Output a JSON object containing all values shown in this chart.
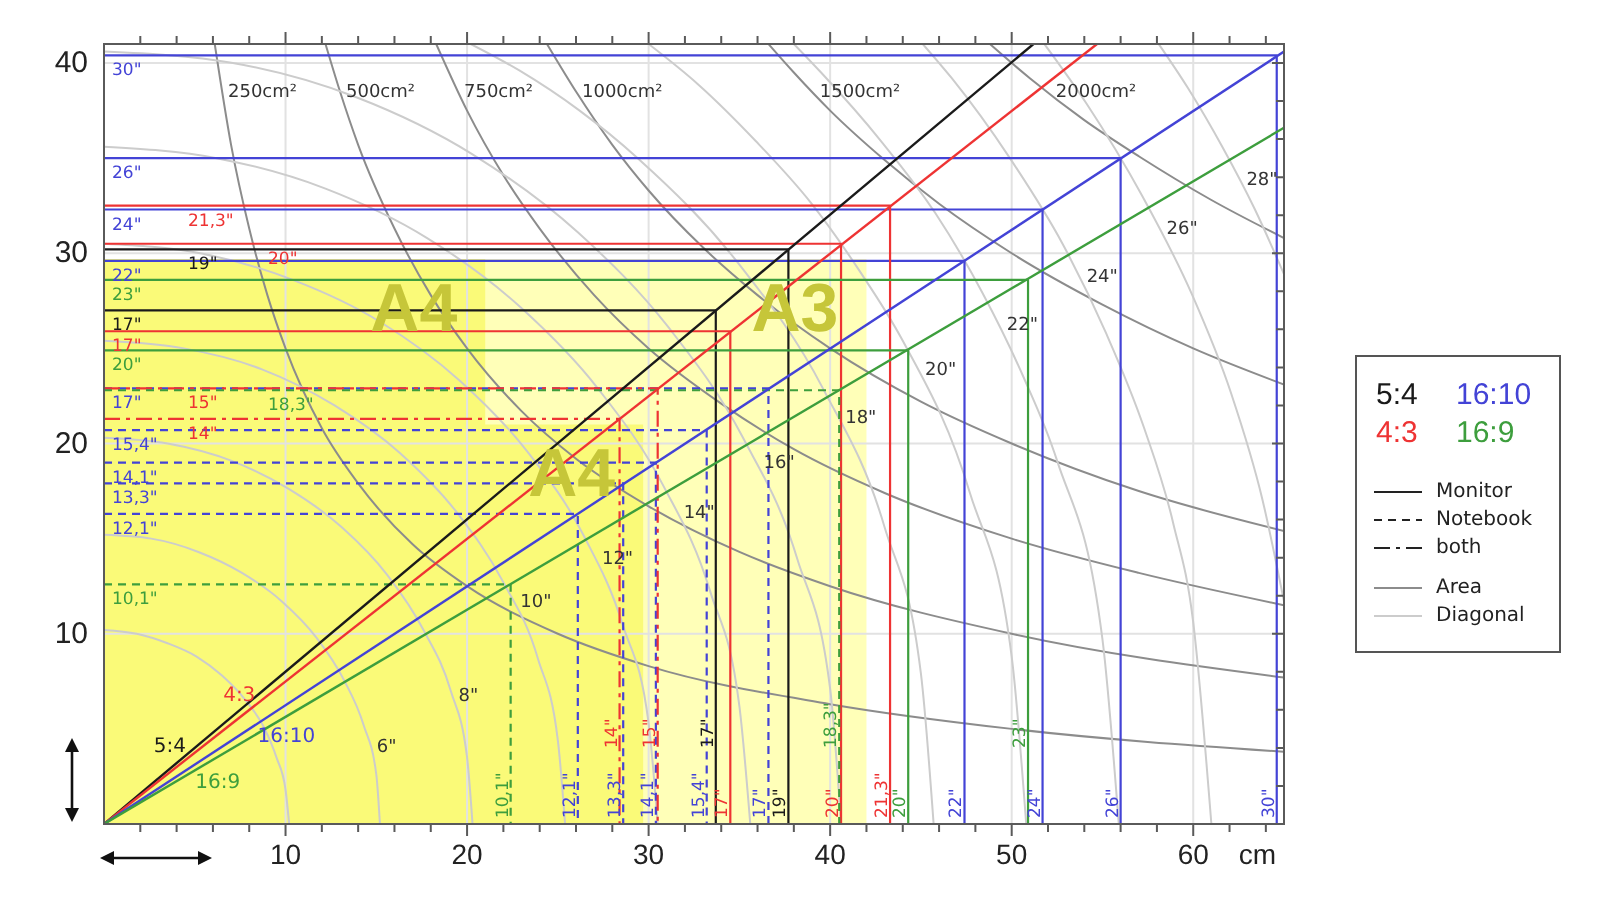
{
  "chart_data": {
    "type": "line",
    "xlabel": "cm",
    "xlim": [
      0,
      65
    ],
    "ylim": [
      0,
      41
    ],
    "xticks": [
      {
        "value": 2,
        "label": null
      },
      {
        "value": 4,
        "label": null
      },
      {
        "value": 6,
        "label": null
      },
      {
        "value": 8,
        "label": null
      },
      10,
      {
        "value": 12,
        "label": null
      },
      {
        "value": 14,
        "label": null
      },
      {
        "value": 16,
        "label": null
      },
      {
        "value": 18,
        "label": null
      },
      20,
      {
        "value": 22,
        "label": null
      },
      {
        "value": 24,
        "label": null
      },
      {
        "value": 26,
        "label": null
      },
      {
        "value": 28,
        "label": null
      },
      30,
      {
        "value": 32,
        "label": null
      },
      {
        "value": 34,
        "label": null
      },
      {
        "value": 36,
        "label": null
      },
      {
        "value": 38,
        "label": null
      },
      40,
      {
        "value": 42,
        "label": null
      },
      {
        "value": 44,
        "label": null
      },
      {
        "value": 46,
        "label": null
      },
      {
        "value": 48,
        "label": null
      },
      50,
      {
        "value": 52,
        "label": null
      },
      {
        "value": 54,
        "label": null
      },
      {
        "value": 56,
        "label": null
      },
      {
        "value": 58,
        "label": null
      },
      60,
      {
        "value": 62,
        "label": null
      },
      {
        "value": 64,
        "label": null
      }
    ],
    "yticks": [
      {
        "value": 2,
        "label": null
      },
      {
        "value": 4,
        "label": null
      },
      {
        "value": 6,
        "label": null
      },
      {
        "value": 8,
        "label": null
      },
      10,
      {
        "value": 12,
        "label": null
      },
      {
        "value": 14,
        "label": null
      },
      {
        "value": 16,
        "label": null
      },
      {
        "value": 18,
        "label": null
      },
      20,
      {
        "value": 22,
        "label": null
      },
      {
        "value": 24,
        "label": null
      },
      {
        "value": 26,
        "label": null
      },
      {
        "value": 28,
        "label": null
      },
      30,
      {
        "value": 32,
        "label": null
      },
      {
        "value": 34,
        "label": null
      },
      {
        "value": 36,
        "label": null
      },
      {
        "value": 38,
        "label": null
      },
      40
    ],
    "grid": true,
    "legend": "right",
    "series": [
      {
        "name": "A3",
        "type": "area",
        "color": "#ffffb8",
        "x": [
          0,
          42
        ],
        "values": [
          29.7,
          29.7
        ]
      },
      {
        "name": "A4",
        "type": "area",
        "color": "#fafa78",
        "x": [
          0,
          21
        ],
        "values": [
          29.7,
          29.7
        ]
      },
      {
        "name": "A4",
        "type": "area",
        "color": "#fafa78",
        "x": [
          0,
          29.7
        ],
        "values": [
          21,
          21
        ]
      },
      {
        "color": "#8c8c8c",
        "x": [
          6.1,
          7,
          8,
          9,
          10,
          12,
          14,
          17,
          20,
          25,
          30,
          40,
          50,
          65
        ],
        "values": [
          41,
          35.7,
          31.3,
          27.8,
          25,
          20.8,
          17.9,
          14.7,
          12.5,
          10,
          8.3,
          6.3,
          5,
          3.8
        ]
      },
      {
        "color": "#8c8c8c",
        "x": [
          12.2,
          13,
          14,
          16,
          18,
          20,
          23,
          26,
          30,
          35,
          40,
          50,
          65
        ],
        "values": [
          41,
          38.5,
          35.7,
          31.3,
          27.8,
          25,
          21.7,
          19.2,
          16.7,
          14.3,
          12.5,
          10,
          7.7
        ]
      },
      {
        "color": "#8c8c8c",
        "x": [
          18.3,
          20,
          22,
          24,
          27,
          30,
          34,
          38,
          43,
          50,
          57,
          65
        ],
        "values": [
          41,
          37.5,
          34.1,
          31.3,
          27.8,
          25,
          22.1,
          19.7,
          17.4,
          15,
          13.2,
          11.5
        ]
      },
      {
        "color": "#8c8c8c",
        "x": [
          24.4,
          26,
          28,
          30,
          33,
          36,
          40,
          45,
          50,
          57,
          65
        ],
        "values": [
          41,
          38.5,
          35.7,
          33.3,
          30.3,
          27.8,
          25,
          22.2,
          20,
          17.5,
          15.4
        ]
      },
      {
        "color": "#8c8c8c",
        "x": [
          36.6,
          38,
          40,
          43,
          46,
          50,
          55,
          60,
          65
        ],
        "values": [
          41,
          39.5,
          37.5,
          34.9,
          32.6,
          30,
          27.3,
          25,
          23.1
        ]
      },
      {
        "color": "#8c8c8c",
        "x": [
          48.8,
          51,
          54,
          57,
          61,
          65
        ],
        "values": [
          41,
          39.2,
          37,
          35.1,
          32.8,
          30.8
        ]
      },
      {
        "color": "#cccccc",
        "x": [
          0,
          1.8,
          3.5,
          5.1,
          6.5,
          7.8,
          8.8,
          9.5,
          10,
          10.2
        ],
        "values": [
          10.2,
          10,
          9.5,
          8.8,
          7.8,
          6.5,
          5.1,
          3.5,
          1.8,
          0
        ]
      },
      {
        "color": "#cccccc",
        "x": [
          0,
          2.6,
          5.2,
          7.6,
          9.8,
          11.7,
          13.2,
          14.3,
          15,
          15.2
        ],
        "values": [
          15.2,
          15,
          14.3,
          13.2,
          11.7,
          9.8,
          7.6,
          5.2,
          2.6,
          0
        ]
      },
      {
        "color": "#cccccc",
        "x": [
          0,
          3.5,
          7,
          10.2,
          13.1,
          15.6,
          17.6,
          19.1,
          20,
          20.3
        ],
        "values": [
          20.3,
          20,
          19.1,
          17.6,
          15.6,
          13.1,
          10.2,
          7,
          3.5,
          0
        ]
      },
      {
        "color": "#cccccc",
        "x": [
          0,
          4.4,
          8.7,
          12.7,
          16.3,
          19.5,
          22,
          23.9,
          25,
          25.4
        ],
        "values": [
          25.4,
          25,
          23.9,
          22,
          19.5,
          16.3,
          12.7,
          8.7,
          4.4,
          0
        ]
      },
      {
        "color": "#cccccc",
        "x": [
          0,
          5.3,
          10.4,
          15.2,
          19.6,
          23.3,
          26.4,
          28.6,
          30,
          30.5
        ],
        "values": [
          30.5,
          30,
          28.6,
          26.4,
          23.3,
          19.6,
          15.2,
          10.4,
          5.3,
          0
        ]
      },
      {
        "color": "#cccccc",
        "x": [
          0,
          6.2,
          12.2,
          17.8,
          22.9,
          27.2,
          30.8,
          33.4,
          35,
          35.6
        ],
        "values": [
          35.6,
          35,
          33.4,
          30.8,
          27.2,
          22.9,
          17.8,
          12.2,
          6.2,
          0
        ]
      },
      {
        "color": "#cccccc",
        "x": [
          0,
          7.1,
          13.9,
          20.3,
          26.1,
          31.1,
          35.2,
          38.2,
          40,
          40.6
        ],
        "values": [
          40.6,
          40,
          38.2,
          35.2,
          31.1,
          26.1,
          20.3,
          13.9,
          7.1,
          0
        ]
      },
      {
        "color": "#cccccc",
        "x": [
          20.2,
          22.9,
          26.2,
          29.4,
          35,
          39.6,
          43,
          45,
          45.7
        ],
        "values": [
          41,
          39.6,
          37.5,
          35,
          29.4,
          22.9,
          15.6,
          7.9,
          0
        ]
      },
      {
        "color": "#cccccc",
        "x": [
          30,
          32.7,
          35.9,
          38.9,
          41.6,
          44,
          47.7,
          50,
          50.8
        ],
        "values": [
          41,
          38.9,
          35.9,
          32.7,
          29.1,
          25.4,
          17.4,
          8.8,
          0
        ]
      },
      {
        "color": "#cccccc",
        "x": [
          38,
          39.5,
          42.8,
          45.8,
          48.4,
          50.6,
          52.5,
          55,
          55.9
        ],
        "values": [
          41,
          39.5,
          35.9,
          32.1,
          27.9,
          23.6,
          19.1,
          9.7,
          0
        ]
      },
      {
        "color": "#cccccc",
        "x": [
          45.1,
          46.7,
          49.9,
          52.8,
          55.2,
          57.3,
          58.9,
          60,
          61
        ],
        "values": [
          41,
          39.2,
          35,
          30.5,
          25.8,
          20.8,
          15.8,
          10.6,
          0
        ]
      },
      {
        "color": "#cccccc",
        "x": [
          51.8,
          54.1,
          57.2,
          59.9,
          62.1,
          63.8,
          65
        ],
        "values": [
          41,
          37.9,
          33,
          27.9,
          22.6,
          17.1,
          11.7
        ]
      },
      {
        "color": "#cccccc",
        "x": [
          58.1,
          59.7,
          61.6,
          63.4,
          65
        ],
        "values": [
          41,
          38.7,
          35.6,
          32.3,
          28.9
        ]
      },
      {
        "name": "30\"",
        "type": "step",
        "color": "#4343d6",
        "line_style": "solid",
        "x": [
          0,
          64.6
        ],
        "values": [
          40.4,
          0
        ]
      },
      {
        "name": "26\"",
        "type": "step",
        "color": "#4343d6",
        "line_style": "solid",
        "x": [
          0,
          56
        ],
        "values": [
          35,
          0
        ]
      },
      {
        "name": "24\"",
        "type": "step",
        "color": "#4343d6",
        "line_style": "solid",
        "x": [
          0,
          51.7
        ],
        "values": [
          32.3,
          0
        ]
      },
      {
        "name": "22\"",
        "type": "step",
        "color": "#4343d6",
        "line_style": "solid",
        "x": [
          0,
          47.4
        ],
        "values": [
          29.6,
          0
        ]
      },
      {
        "name": "17\"",
        "type": "step",
        "color": "#4343d6",
        "line_style": "dashed",
        "x": [
          0,
          36.6
        ],
        "values": [
          22.9,
          0
        ]
      },
      {
        "name": "15,4\"",
        "type": "step",
        "color": "#4343d6",
        "line_style": "dashed",
        "x": [
          0,
          33.2
        ],
        "values": [
          20.7,
          0
        ]
      },
      {
        "name": "14,1\"",
        "type": "step",
        "color": "#4343d6",
        "line_style": "dashed",
        "x": [
          0,
          30.4
        ],
        "values": [
          19,
          0
        ]
      },
      {
        "name": "13,3\"",
        "type": "step",
        "color": "#4343d6",
        "line_style": "dashed",
        "x": [
          0,
          28.6
        ],
        "values": [
          17.9,
          0
        ]
      },
      {
        "name": "12,1\"",
        "type": "step",
        "color": "#4343d6",
        "line_style": "dashed",
        "x": [
          0,
          26.1
        ],
        "values": [
          16.3,
          0
        ]
      },
      {
        "name": "19\"",
        "type": "step",
        "color": "#1a1a1a",
        "line_style": "solid",
        "x": [
          0,
          37.7
        ],
        "values": [
          30.2,
          0
        ]
      },
      {
        "name": "17\"",
        "type": "step",
        "color": "#1a1a1a",
        "line_style": "solid",
        "x": [
          0,
          33.7
        ],
        "values": [
          27,
          0
        ]
      },
      {
        "name": "21,3\"",
        "type": "step",
        "color": "#ee3333",
        "line_style": "solid",
        "x": [
          0,
          43.3
        ],
        "values": [
          32.5,
          0
        ]
      },
      {
        "name": "20\"",
        "type": "step",
        "color": "#ee3333",
        "line_style": "solid",
        "x": [
          0,
          40.6
        ],
        "values": [
          30.5,
          0
        ]
      },
      {
        "name": "17\"",
        "type": "step",
        "color": "#ee3333",
        "line_style": "solid",
        "x": [
          0,
          34.5
        ],
        "values": [
          25.9,
          0
        ]
      },
      {
        "name": "15\"",
        "type": "step",
        "color": "#ee3333",
        "line_style": "dashdot",
        "x": [
          0,
          30.5
        ],
        "values": [
          22.9,
          0
        ]
      },
      {
        "name": "14\"",
        "type": "step",
        "color": "#ee3333",
        "line_style": "dashdot",
        "x": [
          0,
          28.4
        ],
        "values": [
          21.3,
          0
        ]
      },
      {
        "name": "23\"",
        "type": "step",
        "color": "#3d9e3d",
        "line_style": "solid",
        "x": [
          0,
          50.9
        ],
        "values": [
          28.6,
          0
        ]
      },
      {
        "name": "20\"",
        "type": "step",
        "color": "#3d9e3d",
        "line_style": "solid",
        "x": [
          0,
          44.3
        ],
        "values": [
          24.9,
          0
        ]
      },
      {
        "name": "18,3\"",
        "type": "step",
        "color": "#3d9e3d",
        "line_style": "dashed",
        "x": [
          0,
          40.5
        ],
        "values": [
          22.8,
          0
        ]
      },
      {
        "name": "10,1\"",
        "type": "step",
        "color": "#3d9e3d",
        "line_style": "dashed",
        "x": [
          0,
          22.4
        ],
        "values": [
          12.6,
          0
        ]
      },
      {
        "name": "5:4",
        "color": "#1a1a1a",
        "x": [
          0,
          51.2
        ],
        "values": [
          0,
          41
        ]
      },
      {
        "name": "4:3",
        "color": "#ee3333",
        "x": [
          0,
          54.7
        ],
        "values": [
          0,
          41
        ]
      },
      {
        "name": "16:10",
        "color": "#4343d6",
        "x": [
          0,
          65
        ],
        "values": [
          0,
          40.6
        ]
      },
      {
        "name": "16:9",
        "color": "#3d9e3d",
        "x": [
          0,
          65
        ],
        "values": [
          0,
          36.6
        ]
      }
    ],
    "annotations": [
      "Monitor",
      "Notebook",
      "both",
      "Area",
      "Diagonal",
      {
        "text": "250cm²",
        "x": 6.5,
        "y": 38.4
      },
      {
        "text": "500cm²",
        "x": 13,
        "y": 38.4
      },
      {
        "text": "750cm²",
        "x": 19.5,
        "y": 38.4
      },
      {
        "text": "1000cm²",
        "x": 26,
        "y": 38.4
      },
      {
        "text": "1500cm²",
        "x": 39.1,
        "y": 38.4
      },
      {
        "text": "2000cm²",
        "x": 52.1,
        "y": 38.4
      },
      {
        "text": "6\"",
        "x": 14.7,
        "y": 4
      },
      {
        "text": "8\"",
        "x": 19.2,
        "y": 6.7
      },
      {
        "text": "10\"",
        "x": 22.6,
        "y": 11.6
      },
      {
        "text": "12\"",
        "x": 27.1,
        "y": 13.9
      },
      {
        "text": "14\"",
        "x": 31.6,
        "y": 16.3
      },
      {
        "text": "16\"",
        "x": 36,
        "y": 18.9
      },
      {
        "text": "18\"",
        "x": 40.5,
        "y": 21.3
      },
      {
        "text": "20\"",
        "x": 44.9,
        "y": 23.8
      },
      {
        "text": "22\"",
        "x": 49.4,
        "y": 26.2
      },
      {
        "text": "24\"",
        "x": 53.8,
        "y": 28.7
      },
      {
        "text": "26\"",
        "x": 58.2,
        "y": 31.2
      },
      {
        "text": "28\"",
        "x": 62.6,
        "y": 33.8
      }
    ]
  }
}
